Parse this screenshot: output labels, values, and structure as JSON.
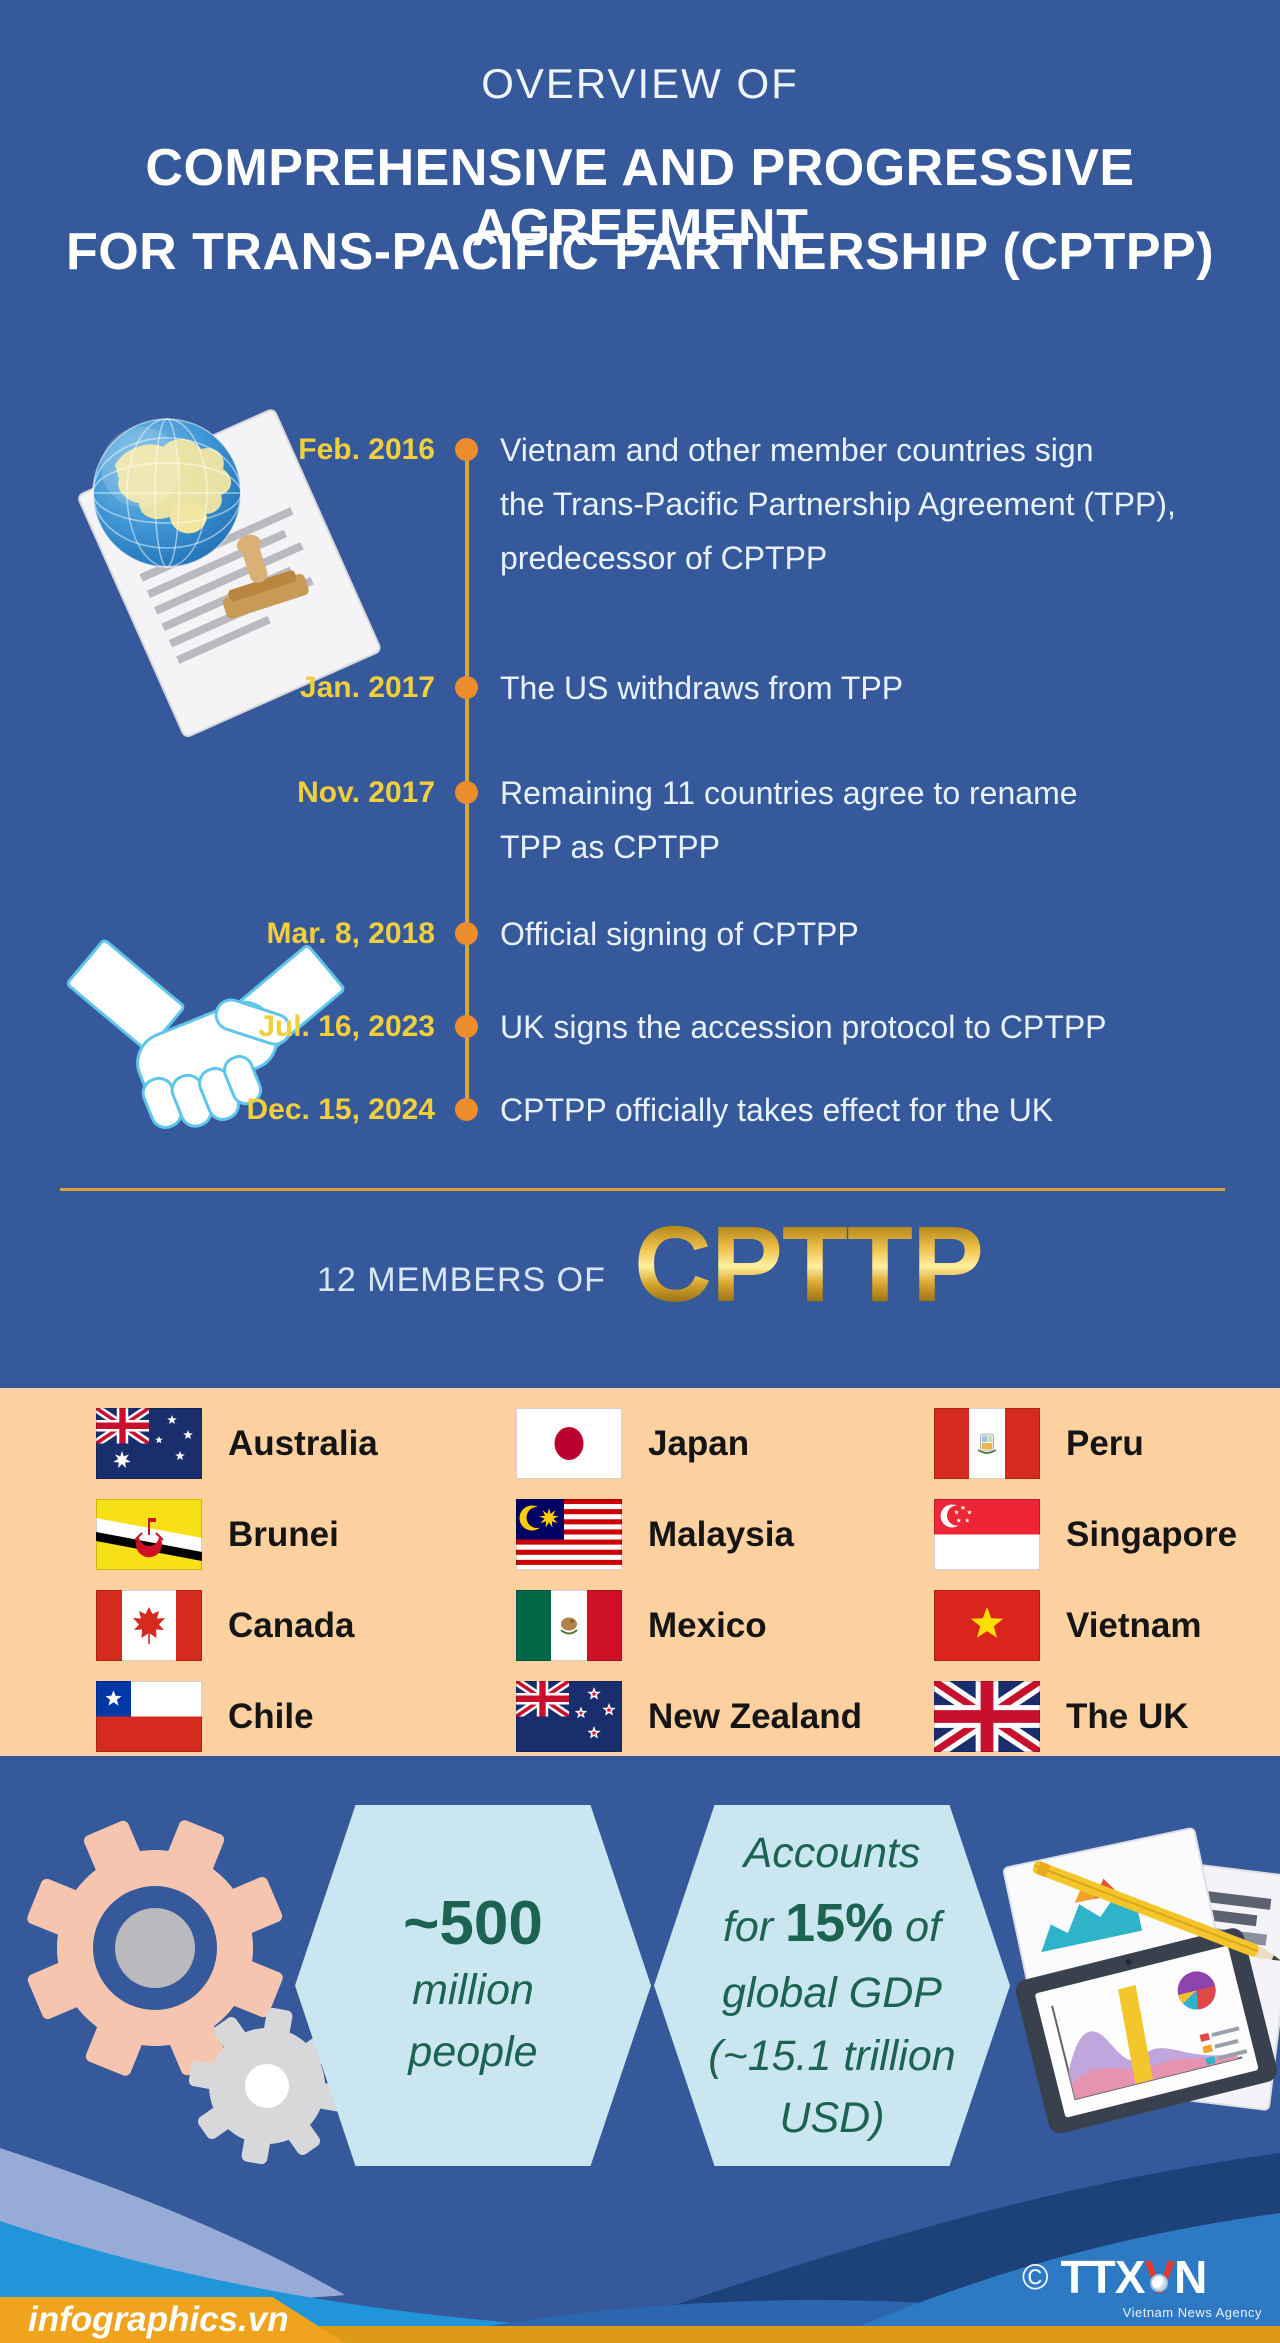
{
  "header": {
    "line1": "OVERVIEW OF",
    "line2": "COMPREHENSIVE AND PROGRESSIVE AGREEMENT",
    "line3": "FOR TRANS-PACIFIC PARTNERSHIP (CPTPP)"
  },
  "timeline": {
    "events": [
      {
        "date": "Feb. 2016",
        "lines": [
          "Vietnam and other member countries sign",
          "the Trans-Pacific Partnership Agreement (TPP),",
          "predecessor of CPTPP"
        ]
      },
      {
        "date": "Jan. 2017",
        "lines": [
          "The US withdraws from TPP"
        ]
      },
      {
        "date": "Nov. 2017",
        "lines": [
          "Remaining 11 countries agree to rename",
          "TPP as CPTPP"
        ]
      },
      {
        "date": "Mar. 8, 2018",
        "lines": [
          "Official signing of CPTPP"
        ]
      },
      {
        "date": "Jul. 16, 2023",
        "lines": [
          "UK signs the accession protocol to CPTPP"
        ]
      },
      {
        "date": "Dec. 15, 2024",
        "lines": [
          "CPTPP officially takes effect for the UK"
        ]
      }
    ]
  },
  "members": {
    "prefix": "12 MEMBERS OF",
    "acronym": "CPTTP",
    "countries": [
      {
        "name": "Australia",
        "code": "au"
      },
      {
        "name": "Japan",
        "code": "jp"
      },
      {
        "name": "Peru",
        "code": "pe"
      },
      {
        "name": "Brunei",
        "code": "bn"
      },
      {
        "name": "Malaysia",
        "code": "my"
      },
      {
        "name": "Singapore",
        "code": "sg"
      },
      {
        "name": "Canada",
        "code": "ca"
      },
      {
        "name": "Mexico",
        "code": "mx"
      },
      {
        "name": "Vietnam",
        "code": "vn"
      },
      {
        "name": "Chile",
        "code": "cl"
      },
      {
        "name": "New Zealand",
        "code": "nz"
      },
      {
        "name": "The UK",
        "code": "uk"
      }
    ]
  },
  "stats": {
    "population": {
      "big": "~500",
      "line2": "million",
      "line3": "people"
    },
    "gdp": {
      "line1": "Accounts",
      "line2_pre": "for ",
      "line2_big": "15%",
      "line2_post": " of",
      "line3": "global GDP",
      "line4": "(~15.1 trillion",
      "line5": "USD)"
    }
  },
  "footer": {
    "site": "infographics.vn",
    "copyright": "©",
    "agency_prefix": "TTX",
    "agency_v": "V",
    "agency_suffix": "N",
    "agency_name": "Vietnam News Agency"
  },
  "colors": {
    "background": "#35599B",
    "peach": "#FCD09F",
    "date_yellow": "#F1CE3B",
    "dot_orange": "#EC8C2C",
    "timeline_gold": "#D9A43C",
    "hexagon_blue": "#CAE6F1",
    "stat_green": "#1C6351",
    "gold_strip": "#DD9A18",
    "banner_orange": "#F0A41D",
    "agency_red": "#E03A2F"
  }
}
